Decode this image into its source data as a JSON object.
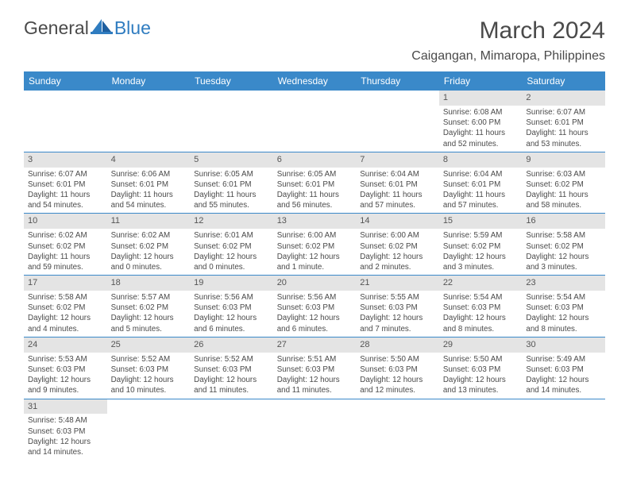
{
  "logo": {
    "word1": "General",
    "word2": "Blue"
  },
  "title": "March 2024",
  "location": "Caigangan, Mimaropa, Philippines",
  "colors": {
    "header_bg": "#3a89c9",
    "header_text": "#ffffff",
    "daynum_bg": "#e4e4e4",
    "border": "#3a89c9",
    "text": "#4a4a4a"
  },
  "weekdays": [
    "Sunday",
    "Monday",
    "Tuesday",
    "Wednesday",
    "Thursday",
    "Friday",
    "Saturday"
  ],
  "weeks": [
    [
      null,
      null,
      null,
      null,
      null,
      {
        "n": "1",
        "sr": "Sunrise: 6:08 AM",
        "ss": "Sunset: 6:00 PM",
        "dl": "Daylight: 11 hours and 52 minutes."
      },
      {
        "n": "2",
        "sr": "Sunrise: 6:07 AM",
        "ss": "Sunset: 6:01 PM",
        "dl": "Daylight: 11 hours and 53 minutes."
      }
    ],
    [
      {
        "n": "3",
        "sr": "Sunrise: 6:07 AM",
        "ss": "Sunset: 6:01 PM",
        "dl": "Daylight: 11 hours and 54 minutes."
      },
      {
        "n": "4",
        "sr": "Sunrise: 6:06 AM",
        "ss": "Sunset: 6:01 PM",
        "dl": "Daylight: 11 hours and 54 minutes."
      },
      {
        "n": "5",
        "sr": "Sunrise: 6:05 AM",
        "ss": "Sunset: 6:01 PM",
        "dl": "Daylight: 11 hours and 55 minutes."
      },
      {
        "n": "6",
        "sr": "Sunrise: 6:05 AM",
        "ss": "Sunset: 6:01 PM",
        "dl": "Daylight: 11 hours and 56 minutes."
      },
      {
        "n": "7",
        "sr": "Sunrise: 6:04 AM",
        "ss": "Sunset: 6:01 PM",
        "dl": "Daylight: 11 hours and 57 minutes."
      },
      {
        "n": "8",
        "sr": "Sunrise: 6:04 AM",
        "ss": "Sunset: 6:01 PM",
        "dl": "Daylight: 11 hours and 57 minutes."
      },
      {
        "n": "9",
        "sr": "Sunrise: 6:03 AM",
        "ss": "Sunset: 6:02 PM",
        "dl": "Daylight: 11 hours and 58 minutes."
      }
    ],
    [
      {
        "n": "10",
        "sr": "Sunrise: 6:02 AM",
        "ss": "Sunset: 6:02 PM",
        "dl": "Daylight: 11 hours and 59 minutes."
      },
      {
        "n": "11",
        "sr": "Sunrise: 6:02 AM",
        "ss": "Sunset: 6:02 PM",
        "dl": "Daylight: 12 hours and 0 minutes."
      },
      {
        "n": "12",
        "sr": "Sunrise: 6:01 AM",
        "ss": "Sunset: 6:02 PM",
        "dl": "Daylight: 12 hours and 0 minutes."
      },
      {
        "n": "13",
        "sr": "Sunrise: 6:00 AM",
        "ss": "Sunset: 6:02 PM",
        "dl": "Daylight: 12 hours and 1 minute."
      },
      {
        "n": "14",
        "sr": "Sunrise: 6:00 AM",
        "ss": "Sunset: 6:02 PM",
        "dl": "Daylight: 12 hours and 2 minutes."
      },
      {
        "n": "15",
        "sr": "Sunrise: 5:59 AM",
        "ss": "Sunset: 6:02 PM",
        "dl": "Daylight: 12 hours and 3 minutes."
      },
      {
        "n": "16",
        "sr": "Sunrise: 5:58 AM",
        "ss": "Sunset: 6:02 PM",
        "dl": "Daylight: 12 hours and 3 minutes."
      }
    ],
    [
      {
        "n": "17",
        "sr": "Sunrise: 5:58 AM",
        "ss": "Sunset: 6:02 PM",
        "dl": "Daylight: 12 hours and 4 minutes."
      },
      {
        "n": "18",
        "sr": "Sunrise: 5:57 AM",
        "ss": "Sunset: 6:02 PM",
        "dl": "Daylight: 12 hours and 5 minutes."
      },
      {
        "n": "19",
        "sr": "Sunrise: 5:56 AM",
        "ss": "Sunset: 6:03 PM",
        "dl": "Daylight: 12 hours and 6 minutes."
      },
      {
        "n": "20",
        "sr": "Sunrise: 5:56 AM",
        "ss": "Sunset: 6:03 PM",
        "dl": "Daylight: 12 hours and 6 minutes."
      },
      {
        "n": "21",
        "sr": "Sunrise: 5:55 AM",
        "ss": "Sunset: 6:03 PM",
        "dl": "Daylight: 12 hours and 7 minutes."
      },
      {
        "n": "22",
        "sr": "Sunrise: 5:54 AM",
        "ss": "Sunset: 6:03 PM",
        "dl": "Daylight: 12 hours and 8 minutes."
      },
      {
        "n": "23",
        "sr": "Sunrise: 5:54 AM",
        "ss": "Sunset: 6:03 PM",
        "dl": "Daylight: 12 hours and 8 minutes."
      }
    ],
    [
      {
        "n": "24",
        "sr": "Sunrise: 5:53 AM",
        "ss": "Sunset: 6:03 PM",
        "dl": "Daylight: 12 hours and 9 minutes."
      },
      {
        "n": "25",
        "sr": "Sunrise: 5:52 AM",
        "ss": "Sunset: 6:03 PM",
        "dl": "Daylight: 12 hours and 10 minutes."
      },
      {
        "n": "26",
        "sr": "Sunrise: 5:52 AM",
        "ss": "Sunset: 6:03 PM",
        "dl": "Daylight: 12 hours and 11 minutes."
      },
      {
        "n": "27",
        "sr": "Sunrise: 5:51 AM",
        "ss": "Sunset: 6:03 PM",
        "dl": "Daylight: 12 hours and 11 minutes."
      },
      {
        "n": "28",
        "sr": "Sunrise: 5:50 AM",
        "ss": "Sunset: 6:03 PM",
        "dl": "Daylight: 12 hours and 12 minutes."
      },
      {
        "n": "29",
        "sr": "Sunrise: 5:50 AM",
        "ss": "Sunset: 6:03 PM",
        "dl": "Daylight: 12 hours and 13 minutes."
      },
      {
        "n": "30",
        "sr": "Sunrise: 5:49 AM",
        "ss": "Sunset: 6:03 PM",
        "dl": "Daylight: 12 hours and 14 minutes."
      }
    ],
    [
      {
        "n": "31",
        "sr": "Sunrise: 5:48 AM",
        "ss": "Sunset: 6:03 PM",
        "dl": "Daylight: 12 hours and 14 minutes."
      },
      null,
      null,
      null,
      null,
      null,
      null
    ]
  ]
}
